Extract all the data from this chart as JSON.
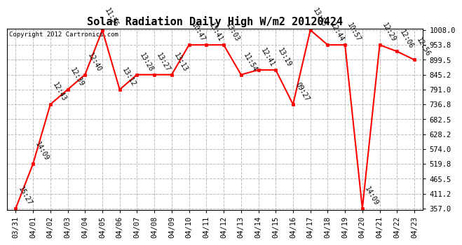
{
  "title": "Solar Radiation Daily High W/m2 20120424",
  "copyright": "Copyright 2012 Cartronics.com",
  "dates": [
    "03/31",
    "04/01",
    "04/02",
    "04/03",
    "04/04",
    "04/05",
    "04/06",
    "04/07",
    "04/08",
    "04/09",
    "04/10",
    "04/11",
    "04/12",
    "04/13",
    "04/14",
    "04/15",
    "04/16",
    "04/17",
    "04/18",
    "04/19",
    "04/20",
    "04/21",
    "04/22",
    "04/23"
  ],
  "values": [
    357.0,
    519.8,
    736.8,
    791.0,
    845.2,
    1008.0,
    791.0,
    845.2,
    845.2,
    845.2,
    953.8,
    953.8,
    953.8,
    845.2,
    862.5,
    862.5,
    736.8,
    1008.0,
    953.8,
    953.8,
    357.0,
    953.8,
    930.0,
    899.5
  ],
  "labels": [
    "15:27",
    "14:09",
    "12:43",
    "12:39",
    "12:40",
    "11:56",
    "13:12",
    "13:28",
    "13:27",
    "13:13",
    "10:47",
    "13:41",
    "13:03",
    "11:54",
    "12:41",
    "13:19",
    "09:27",
    "13:53",
    "12:44",
    "10:57",
    "14:09",
    "12:29",
    "12:06",
    "12:56"
  ],
  "line_color": "#ff0000",
  "marker_color": "#ff0000",
  "bg_color": "#ffffff",
  "grid_color": "#bbbbbb",
  "title_fontsize": 11,
  "label_fontsize": 7,
  "copyright_fontsize": 6.5,
  "tick_fontsize": 7.5,
  "yticks": [
    357.0,
    411.2,
    465.5,
    519.8,
    574.0,
    628.2,
    682.5,
    736.8,
    791.0,
    845.2,
    899.5,
    953.8,
    1008.0
  ],
  "ymin": 357.0,
  "ymax": 1008.0
}
